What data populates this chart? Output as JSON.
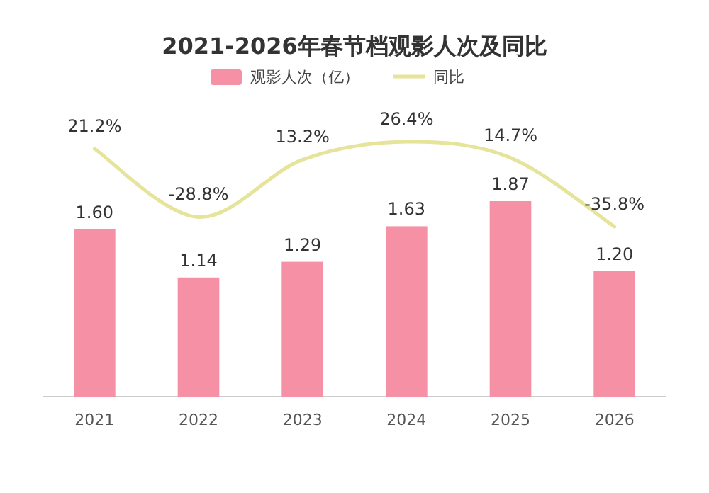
{
  "chart_data": {
    "type": "bar",
    "title": "2021-2026年春节档观影人次及同比",
    "categories": [
      "2021",
      "2022",
      "2023",
      "2024",
      "2025",
      "2026"
    ],
    "series": [
      {
        "name": "观影人次（亿）",
        "color": "#f590a5",
        "values": [
          1.6,
          1.14,
          1.29,
          1.63,
          1.87,
          1.2
        ],
        "value_labels": [
          "1.60",
          "1.14",
          "1.29",
          "1.63",
          "1.87",
          "1.20"
        ]
      },
      {
        "name": "同比",
        "type": "line",
        "axis": "y2",
        "color": "#e6e39a",
        "values": [
          21.2,
          -28.8,
          13.2,
          26.4,
          14.7,
          -35.8
        ],
        "value_labels": [
          "21.2%",
          "-28.8%",
          "13.2%",
          "26.4%",
          "14.7%",
          "-35.8%"
        ]
      }
    ],
    "tick_labels": "x",
    "legend": "top",
    "grid": false,
    "marker": "none"
  }
}
